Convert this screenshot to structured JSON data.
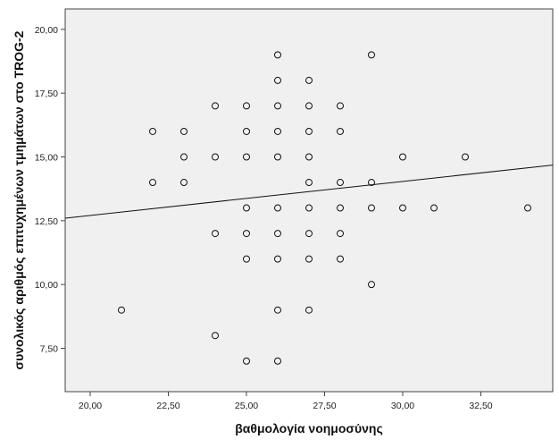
{
  "chart_data": {
    "type": "scatter",
    "xlabel": "βαθμολογία νοημοσύνης",
    "ylabel": "συνολικός αριθμός επιτυχημένων τμημάτων στο TROG-2",
    "xlim": [
      19.2,
      34.8
    ],
    "ylim": [
      5.8,
      20.8
    ],
    "x_ticks": [
      20,
      22.5,
      25,
      27.5,
      30,
      32.5
    ],
    "x_tick_labels": [
      "20,00",
      "22,50",
      "25,00",
      "27,50",
      "30,00",
      "32,50"
    ],
    "y_ticks": [
      7.5,
      10,
      12.5,
      15,
      17.5,
      20
    ],
    "y_tick_labels": [
      "7,50",
      "10,00",
      "12,50",
      "15,00",
      "17,50",
      "20,00"
    ],
    "grid": false,
    "points": [
      {
        "x": 21,
        "y": 9
      },
      {
        "x": 22,
        "y": 16
      },
      {
        "x": 22,
        "y": 14
      },
      {
        "x": 23,
        "y": 16
      },
      {
        "x": 23,
        "y": 15
      },
      {
        "x": 23,
        "y": 14
      },
      {
        "x": 24,
        "y": 17
      },
      {
        "x": 24,
        "y": 15
      },
      {
        "x": 24,
        "y": 12
      },
      {
        "x": 24,
        "y": 8
      },
      {
        "x": 25,
        "y": 17
      },
      {
        "x": 25,
        "y": 16
      },
      {
        "x": 25,
        "y": 15
      },
      {
        "x": 25,
        "y": 13
      },
      {
        "x": 25,
        "y": 12
      },
      {
        "x": 25,
        "y": 11
      },
      {
        "x": 25,
        "y": 7
      },
      {
        "x": 26,
        "y": 19
      },
      {
        "x": 26,
        "y": 18
      },
      {
        "x": 26,
        "y": 17
      },
      {
        "x": 26,
        "y": 16
      },
      {
        "x": 26,
        "y": 15
      },
      {
        "x": 26,
        "y": 13
      },
      {
        "x": 26,
        "y": 12
      },
      {
        "x": 26,
        "y": 11
      },
      {
        "x": 26,
        "y": 9
      },
      {
        "x": 26,
        "y": 7
      },
      {
        "x": 27,
        "y": 18
      },
      {
        "x": 27,
        "y": 17
      },
      {
        "x": 27,
        "y": 16
      },
      {
        "x": 27,
        "y": 15
      },
      {
        "x": 27,
        "y": 14
      },
      {
        "x": 27,
        "y": 13
      },
      {
        "x": 27,
        "y": 12
      },
      {
        "x": 27,
        "y": 11
      },
      {
        "x": 27,
        "y": 9
      },
      {
        "x": 28,
        "y": 17
      },
      {
        "x": 28,
        "y": 16
      },
      {
        "x": 28,
        "y": 14
      },
      {
        "x": 28,
        "y": 13
      },
      {
        "x": 28,
        "y": 12
      },
      {
        "x": 28,
        "y": 11
      },
      {
        "x": 29,
        "y": 19
      },
      {
        "x": 29,
        "y": 14
      },
      {
        "x": 29,
        "y": 13
      },
      {
        "x": 29,
        "y": 10
      },
      {
        "x": 30,
        "y": 15
      },
      {
        "x": 30,
        "y": 13
      },
      {
        "x": 31,
        "y": 13
      },
      {
        "x": 32,
        "y": 15
      },
      {
        "x": 34,
        "y": 13
      }
    ],
    "fit_line": {
      "x": [
        19.2,
        34.8
      ],
      "y": [
        12.6,
        14.68
      ]
    }
  }
}
